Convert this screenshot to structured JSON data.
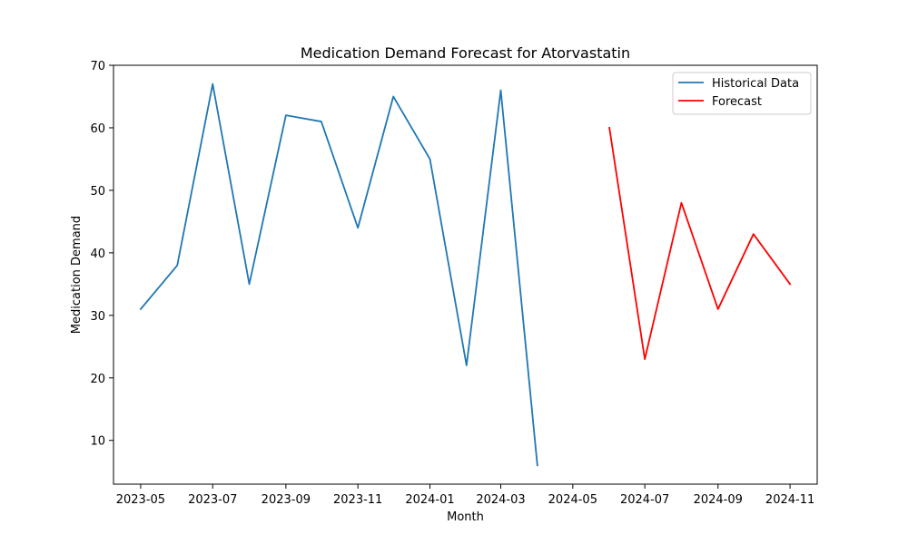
{
  "chart_data": {
    "type": "line",
    "title": "Medication Demand Forecast for Atorvastatin",
    "xlabel": "Month",
    "ylabel": "Medication Demand",
    "x_ticks": [
      "2023-05",
      "2023-07",
      "2023-09",
      "2023-11",
      "2024-01",
      "2024-03",
      "2024-05",
      "2024-07",
      "2024-09",
      "2024-11"
    ],
    "y_ticks": [
      10,
      20,
      30,
      40,
      50,
      60,
      70
    ],
    "ylim": [
      3,
      70
    ],
    "xlim": [
      "2023-04-08",
      "2024-11-24"
    ],
    "grid": false,
    "legend_position": "top-right",
    "series": [
      {
        "name": "Historical Data",
        "color": "#1f77b4",
        "points": [
          {
            "x": "2023-05-01",
            "y": 31
          },
          {
            "x": "2023-06-01",
            "y": 38
          },
          {
            "x": "2023-07-01",
            "y": 67
          },
          {
            "x": "2023-08-01",
            "y": 35
          },
          {
            "x": "2023-09-01",
            "y": 62
          },
          {
            "x": "2023-10-01",
            "y": 61
          },
          {
            "x": "2023-11-01",
            "y": 44
          },
          {
            "x": "2023-12-01",
            "y": 65
          },
          {
            "x": "2024-01-01",
            "y": 55
          },
          {
            "x": "2024-02-01",
            "y": 22
          },
          {
            "x": "2024-03-01",
            "y": 66
          },
          {
            "x": "2024-04-01",
            "y": 6
          }
        ]
      },
      {
        "name": "Forecast",
        "color": "#ff0000",
        "points": [
          {
            "x": "2024-06-01",
            "y": 60
          },
          {
            "x": "2024-07-01",
            "y": 23
          },
          {
            "x": "2024-08-01",
            "y": 48
          },
          {
            "x": "2024-09-01",
            "y": 31
          },
          {
            "x": "2024-10-01",
            "y": 43
          },
          {
            "x": "2024-11-01",
            "y": 35
          }
        ]
      }
    ]
  }
}
